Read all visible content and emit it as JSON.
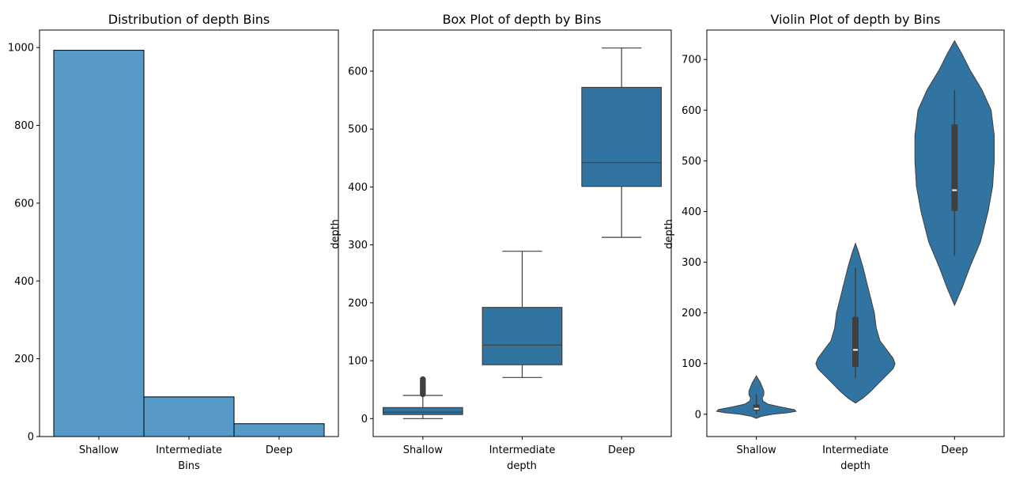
{
  "chart_data": [
    {
      "type": "bar",
      "title": "Distribution of depth Bins",
      "xlabel": "Bins",
      "ylabel": "",
      "categories": [
        "Shallow",
        "Intermediate",
        "Deep"
      ],
      "values": [
        993,
        102,
        33
      ],
      "ylim": [
        0,
        1045
      ],
      "yticks": [
        0,
        200,
        400,
        600,
        800,
        1000
      ],
      "colors": {
        "fill": "#5799c7",
        "edge": "#000000"
      },
      "grid": false
    },
    {
      "type": "box",
      "title": "Box Plot of depth by Bins",
      "xlabel": "depth",
      "ylabel": "depth",
      "categories": [
        "Shallow",
        "Intermediate",
        "Deep"
      ],
      "boxes": [
        {
          "whisker_low": 0,
          "q1": 7,
          "median": 11,
          "q3": 19,
          "whisker_high": 40,
          "outliers": [
            42,
            44,
            46,
            48,
            50,
            52,
            54,
            56,
            58,
            60,
            62,
            64,
            66,
            68
          ]
        },
        {
          "whisker_low": 71,
          "q1": 93,
          "median": 127,
          "q3": 192,
          "whisker_high": 289,
          "outliers": []
        },
        {
          "whisker_low": 313,
          "q1": 401,
          "median": 442,
          "q3": 572,
          "whisker_high": 640,
          "outliers": []
        }
      ],
      "ylim": [
        -31,
        671
      ],
      "yticks": [
        0,
        100,
        200,
        300,
        400,
        500,
        600
      ],
      "colors": {
        "box": "#3274a1",
        "line": "#3f3f3f"
      },
      "grid": false
    },
    {
      "type": "violin",
      "title": "Violin Plot of depth by Bins",
      "xlabel": "depth",
      "ylabel": "depth",
      "categories": [
        "Shallow",
        "Intermediate",
        "Deep"
      ],
      "violins": [
        {
          "profile": [
            [
              -8,
              0
            ],
            [
              -4,
              0.06
            ],
            [
              0,
              0.2
            ],
            [
              3,
              0.38
            ],
            [
              6,
              0.48
            ],
            [
              9,
              0.46
            ],
            [
              14,
              0.3
            ],
            [
              20,
              0.14
            ],
            [
              26,
              0.08
            ],
            [
              32,
              0.07
            ],
            [
              38,
              0.09
            ],
            [
              46,
              0.09
            ],
            [
              54,
              0.07
            ],
            [
              62,
              0.05
            ],
            [
              70,
              0.02
            ],
            [
              76,
              0
            ]
          ],
          "q1": 7,
          "median": 11,
          "q3": 19,
          "whisker_low": 0,
          "whisker_high": 40
        },
        {
          "profile": [
            [
              22,
              0
            ],
            [
              32,
              0.02
            ],
            [
              45,
              0.04
            ],
            [
              60,
              0.06
            ],
            [
              75,
              0.08
            ],
            [
              90,
              0.1
            ],
            [
              100,
              0.105
            ],
            [
              110,
              0.1
            ],
            [
              125,
              0.085
            ],
            [
              145,
              0.065
            ],
            [
              170,
              0.055
            ],
            [
              200,
              0.05
            ],
            [
              230,
              0.04
            ],
            [
              260,
              0.03
            ],
            [
              290,
              0.02
            ],
            [
              320,
              0.008
            ],
            [
              337,
              0
            ]
          ],
          "q1": 93,
          "median": 127,
          "q3": 192,
          "whisker_low": 71,
          "whisker_high": 289
        },
        {
          "profile": [
            [
              215,
              0
            ],
            [
              250,
              0.005
            ],
            [
              290,
              0.01
            ],
            [
              340,
              0.017
            ],
            [
              400,
              0.022
            ],
            [
              450,
              0.025
            ],
            [
              500,
              0.026
            ],
            [
              550,
              0.026
            ],
            [
              600,
              0.024
            ],
            [
              640,
              0.018
            ],
            [
              680,
              0.01
            ],
            [
              710,
              0.005
            ],
            [
              737,
              0
            ]
          ],
          "q1": 401,
          "median": 442,
          "q3": 572,
          "whisker_low": 313,
          "whisker_high": 640
        }
      ],
      "ylim": [
        -44,
        758
      ],
      "yticks": [
        0,
        100,
        200,
        300,
        400,
        500,
        600,
        700
      ],
      "colors": {
        "fill": "#3274a1",
        "box": "#3f3f3f",
        "median": "#ffffff"
      },
      "grid": false
    }
  ]
}
